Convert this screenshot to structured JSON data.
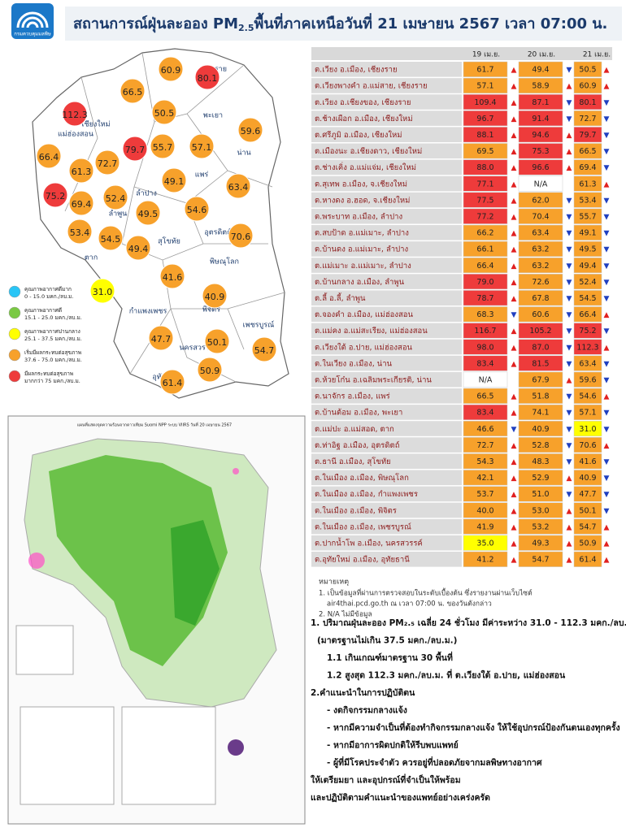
{
  "header": {
    "agency": "กรมควบคุมมลพิษ",
    "title_pre": "สถานการณ์ฝุ่นละออง PM",
    "title_sub": "2.5",
    "title_post": "พื้นที่ภาคเหนือวันที่ 21 เมษายน 2567 เวลา 07:00 น."
  },
  "legend": [
    {
      "label": "คุณภาพอากาศดีมาก",
      "range": "0 - 15.0 มคก./ลบ.ม.",
      "color": "#29c5f6",
      "max": 15
    },
    {
      "label": "คุณภาพอากาศดี",
      "range": "15.1 - 25.0 มคก./ลบ.ม.",
      "color": "#7ac943",
      "max": 25
    },
    {
      "label": "คุณภาพอากาศปานกลาง",
      "range": "25.1 - 37.5 มคก./ลบ.ม.",
      "color": "#ffff00",
      "max": 37.5
    },
    {
      "label": "เริ่มมีผลกระทบต่อสุขภาพ",
      "range": "37.6 - 75.0 มคก./ลบ.ม.",
      "color": "#f7a12b",
      "max": 75
    },
    {
      "label": "มีผลกระทบต่อสุขภาพ",
      "range": "มากกว่า 75 มคก./ลบ.ม.",
      "color": "#ee3b3b",
      "max": null
    }
  ],
  "map": {
    "provinces": [
      "เชียงราย",
      "แม่ฮ่องสอน",
      "เชียงใหม่",
      "พะเยา",
      "น่าน",
      "แพร่",
      "ลำปาง",
      "ลำพูน",
      "อุตรดิตถ์",
      "สุโขทัย",
      "ตาก",
      "พิษณุโลก",
      "กำแพงเพชร",
      "พิจิตร",
      "นครสวรรค์",
      "เพชรบูรณ์",
      "อุทัยธานี"
    ],
    "bubbles": [
      "60.9",
      "80.1",
      "66.5",
      "112.3",
      "50.5",
      "59.6",
      "79.7",
      "55.7",
      "57.1",
      "66.4",
      "61.3",
      "72.7",
      "49.1",
      "63.4",
      "75.2",
      "69.4",
      "52.4",
      "49.5",
      "54.6",
      "53.4",
      "54.5",
      "49.4",
      "70.6",
      "41.6",
      "40.9",
      "31.0",
      "47.7",
      "50.1",
      "54.7",
      "50.9",
      "61.4"
    ]
  },
  "satellite": {
    "title": "แผนที่แสดงจุดความร้อนจากดาวเทียม Suomi NPP ระบบ VIIRS วันที่ 20 เมษายน 2567"
  },
  "table": {
    "columns": [
      "19 เม.ย.",
      "20 เม.ย.",
      "21 เม.ย."
    ],
    "rows": [
      {
        "station": "ต.เวียง อ.เมือง, เชียงราย",
        "values": [
          "61.7",
          "49.4",
          "50.5"
        ],
        "arrows": [
          "▲",
          "▼",
          "▲"
        ]
      },
      {
        "station": "ต.เวียงพางคำ อ.แม่สาย, เชียงราย",
        "values": [
          "57.1",
          "58.9",
          "60.9"
        ],
        "arrows": [
          "▲",
          "▲",
          "▲"
        ]
      },
      {
        "station": "ต.เวียง อ.เชียงของ, เชียงราย",
        "values": [
          "109.4",
          "87.1",
          "80.1"
        ],
        "arrows": [
          "▲",
          "▼",
          "▼"
        ]
      },
      {
        "station": "ต.ช้างเผือก อ.เมือง, เชียงใหม่",
        "values": [
          "96.7",
          "91.4",
          "72.7"
        ],
        "arrows": [
          "▲",
          "▼",
          "▼"
        ]
      },
      {
        "station": "ต.ศรีภูมิ อ.เมือง, เชียงใหม่",
        "values": [
          "88.1",
          "94.6",
          "79.7"
        ],
        "arrows": [
          "▲",
          "▲",
          "▼"
        ]
      },
      {
        "station": "ต.เมืองนะ อ.เชียงดาว, เชียงใหม่",
        "values": [
          "69.5",
          "75.3",
          "66.5"
        ],
        "arrows": [
          "▲",
          "▲",
          "▼"
        ]
      },
      {
        "station": "ต.ช่างเคิ่ง อ.แม่แจ่ม, เชียงใหม่",
        "values": [
          "88.0",
          "96.6",
          "69.4"
        ],
        "arrows": [
          "▲",
          "▲",
          "▼"
        ]
      },
      {
        "station": "ต.สุเทพ อ.เมือง, จ.เชียงใหม่",
        "values": [
          "77.1",
          "N/A",
          "61.3"
        ],
        "arrows": [
          "▲",
          null,
          "▲"
        ]
      },
      {
        "station": "ต.หางดง อ.ฮอด, จ.เชียงใหม่",
        "values": [
          "77.5",
          "62.0",
          "53.4"
        ],
        "arrows": [
          "▲",
          "▼",
          "▼"
        ]
      },
      {
        "station": "ต.พระบาท อ.เมือง, ลำปาง",
        "values": [
          "77.2",
          "70.4",
          "55.7"
        ],
        "arrows": [
          "▲",
          "▼",
          "▼"
        ]
      },
      {
        "station": "ต.สบป้าด อ.แม่เมาะ, ลำปาง",
        "values": [
          "66.2",
          "63.4",
          "49.1"
        ],
        "arrows": [
          "▲",
          "▼",
          "▼"
        ]
      },
      {
        "station": "ต.บ้านดง อ.แม่เมาะ, ลำปาง",
        "values": [
          "66.1",
          "63.2",
          "49.5"
        ],
        "arrows": [
          "▲",
          "▼",
          "▼"
        ]
      },
      {
        "station": "ต.แม่เมาะ อ.แม่เมาะ, ลำปาง",
        "values": [
          "66.4",
          "63.2",
          "49.4"
        ],
        "arrows": [
          "▲",
          "▼",
          "▼"
        ]
      },
      {
        "station": "ต.บ้านกลาง อ.เมือง, ลำพูน",
        "values": [
          "79.0",
          "72.6",
          "52.4"
        ],
        "arrows": [
          "▲",
          "▼",
          "▼"
        ]
      },
      {
        "station": "ต.ลี้ อ.ลี้, ลำพูน",
        "values": [
          "78.7",
          "67.8",
          "54.5"
        ],
        "arrows": [
          "▲",
          "▼",
          "▼"
        ]
      },
      {
        "station": "ต.จองคำ อ.เมือง, แม่ฮ่องสอน",
        "values": [
          "68.3",
          "60.6",
          "66.4"
        ],
        "arrows": [
          "▼",
          "▼",
          "▲"
        ]
      },
      {
        "station": "ต.แม่คง อ.แม่สะเรียง, แม่ฮ่องสอน",
        "values": [
          "116.7",
          "105.2",
          "75.2"
        ],
        "arrows": [
          "▲",
          "▼",
          "▼"
        ]
      },
      {
        "station": "ต.เวียงใต้ อ.ปาย, แม่ฮ่องสอน",
        "values": [
          "98.0",
          "87.0",
          "112.3"
        ],
        "arrows": [
          "▲",
          "▼",
          "▲"
        ]
      },
      {
        "station": "ต.ในเวียง อ.เมือง, น่าน",
        "values": [
          "83.4",
          "81.5",
          "63.4"
        ],
        "arrows": [
          "▲",
          "▼",
          "▼"
        ]
      },
      {
        "station": "ต.ห้วยโก๋น อ.เฉลิมพระเกียรติ, น่าน",
        "values": [
          "N/A",
          "67.9",
          "59.6"
        ],
        "arrows": [
          null,
          "▲",
          "▼"
        ]
      },
      {
        "station": "ต.นาจักร อ.เมือง, แพร่",
        "values": [
          "66.5",
          "51.8",
          "54.6"
        ],
        "arrows": [
          "▲",
          "▼",
          "▲"
        ]
      },
      {
        "station": "ต.บ้านต้อม อ.เมือง, พะเยา",
        "values": [
          "83.4",
          "74.1",
          "57.1"
        ],
        "arrows": [
          "▲",
          "▼",
          "▼"
        ]
      },
      {
        "station": "ต.แม่ปะ อ.แม่สอด, ตาก",
        "values": [
          "46.6",
          "40.9",
          "31.0"
        ],
        "arrows": [
          "▼",
          "▼",
          "▼"
        ]
      },
      {
        "station": "ต.ท่าอิฐ อ.เมือง, อุตรดิตถ์",
        "values": [
          "72.7",
          "52.8",
          "70.6"
        ],
        "arrows": [
          "▲",
          "▼",
          "▲"
        ]
      },
      {
        "station": "ต.ธานี อ.เมือง, สุโขทัย",
        "values": [
          "54.3",
          "48.3",
          "41.6"
        ],
        "arrows": [
          "▲",
          "▼",
          "▼"
        ]
      },
      {
        "station": "ต.ในเมือง อ.เมือง, พิษณุโลก",
        "values": [
          "42.1",
          "52.9",
          "40.9"
        ],
        "arrows": [
          "▲",
          "▲",
          "▼"
        ]
      },
      {
        "station": "ต.ในเมือง อ.เมือง, กำแพงเพชร",
        "values": [
          "53.7",
          "51.0",
          "47.7"
        ],
        "arrows": [
          "▲",
          "▼",
          "▼"
        ]
      },
      {
        "station": "ต.ในเมือง อ.เมือง, พิจิตร",
        "values": [
          "40.0",
          "53.0",
          "50.1"
        ],
        "arrows": [
          "▲",
          "▲",
          "▼"
        ]
      },
      {
        "station": "ต.ในเมือง อ.เมือง, เพชรบูรณ์",
        "values": [
          "41.9",
          "53.2",
          "54.7"
        ],
        "arrows": [
          "▲",
          "▲",
          "▲"
        ]
      },
      {
        "station": "ต.ปากน้ำโพ อ.เมือง, นครสวรรค์",
        "values": [
          "35.0",
          "49.3",
          "50.9"
        ],
        "arrows": [
          "▲",
          "▲",
          "▲"
        ]
      },
      {
        "station": "ต.อุทัยใหม่ อ.เมือง, อุทัยธานี",
        "values": [
          "41.2",
          "54.7",
          "61.4"
        ],
        "arrows": [
          "▲",
          "▲",
          "▲"
        ]
      }
    ]
  },
  "notes": {
    "heading": "หมายเหตุ",
    "lines": [
      "1. เป็นข้อมูลที่ผ่านการตรวจสอบในระดับเบื้องต้น ซึ่งรายงานผ่านเว็บไซต์",
      "air4thai.pcd.go.th ณ เวลา 07:00 น. ของวันดังกล่าว",
      "2. N/A ไม่มีข้อมูล"
    ]
  },
  "summary": [
    "1. ปริมาณฝุ่นละออง PM₂.₅ เฉลี่ย 24 ชั่วโมง มีค่าระหว่าง 31.0 - 112.3 มคก./ลบ.ม.",
    "(มาตรฐานไม่เกิน 37.5 มคก./ลบ.ม.)",
    "1.1 เกินเกณฑ์มาตรฐาน 30 พื้นที่",
    "1.2 สูงสุด 112.3 มคก./ลบ.ม. ที่ ต.เวียงใต้ อ.ปาย, แม่ฮ่องสอน",
    "2.คำแนะนำในการปฏิบัติตน",
    "- งดกิจกรรมกลางแจ้ง",
    "- หากมีความจำเป็นที่ต้องทำกิจกรรมกลางแจ้ง ให้ใช้อุปกรณ์ป้องกันตนเองทุกครั้ง",
    "- หากมีอาการผิดปกติให้รีบพบแพทย์",
    "- ผู้ที่มีโรคประจำตัว ควรอยู่ที่ปลอดภัยจากมลพิษทางอากาศ",
    "ให้เตรียมยา และอุปกรณ์ที่จำเป็นให้พร้อม",
    "และปฏิบัติตามคำแนะนำของแพทย์อย่างเคร่งครัด"
  ]
}
